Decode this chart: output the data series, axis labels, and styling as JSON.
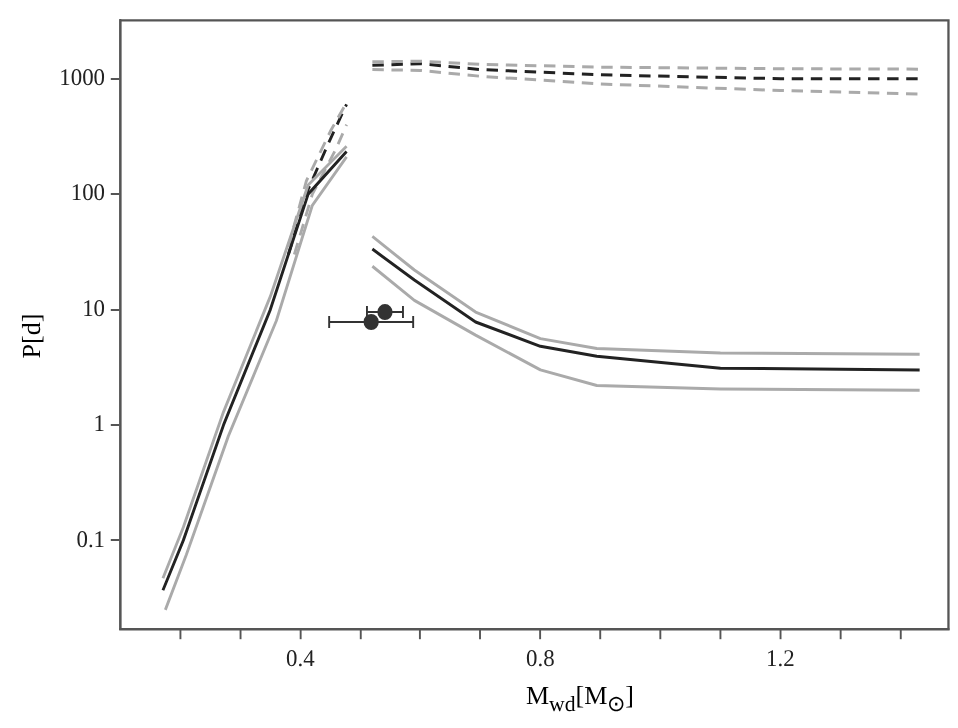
{
  "chart_data": {
    "type": "line",
    "xlabel": "M$_{wd}$[M$_{⊙}$]",
    "ylabel": "P[d]",
    "log": "y",
    "grid": false,
    "legend": false,
    "xlim": [
      0.1,
      1.48
    ],
    "ylim": [
      0.017,
      3200
    ],
    "xticks": [
      {
        "value": 0.2,
        "label": null
      },
      {
        "value": 0.3,
        "label": null
      },
      0.4,
      {
        "value": 0.5,
        "label": null
      },
      {
        "value": 0.6,
        "label": null
      },
      {
        "value": 0.7,
        "label": null
      },
      0.8,
      {
        "value": 0.9,
        "label": null
      },
      {
        "value": 1.0,
        "label": null
      },
      {
        "value": 1.1,
        "label": null
      },
      1.2,
      {
        "value": 1.3,
        "label": null
      },
      {
        "value": 1.4,
        "label": null
      }
    ],
    "yticks": [
      0.1,
      1,
      10,
      100,
      1000
    ],
    "series": [
      {
        "type": "line",
        "color": "#aaaaaa",
        "line_style": "solid",
        "x": [
          0.171,
          0.205,
          0.272,
          0.35,
          0.413,
          0.477,
          null,
          0.52,
          0.59,
          0.692,
          0.8,
          0.894,
          1.1,
          1.432
        ],
        "values": [
          0.047,
          0.13,
          1.3,
          13,
          120,
          260,
          null,
          43,
          22,
          9.5,
          5.6,
          4.6,
          4.2,
          4.1
        ]
      },
      {
        "type": "line",
        "color": "#aaaaaa",
        "line_style": "solid",
        "x": [
          0.175,
          0.21,
          0.28,
          0.36,
          0.42,
          0.477,
          null,
          0.52,
          0.59,
          0.692,
          0.8,
          0.894,
          1.1,
          1.432
        ],
        "values": [
          0.025,
          0.075,
          0.8,
          8,
          80,
          210,
          null,
          23.7,
          12,
          6,
          3,
          2.2,
          2.05,
          2.0
        ]
      },
      {
        "type": "line",
        "color": "#222222",
        "line_style": "solid",
        "x": [
          0.171,
          0.205,
          0.272,
          0.35,
          0.413,
          0.477,
          null,
          0.52,
          0.59,
          0.692,
          0.8,
          0.894,
          1.1,
          1.432
        ],
        "values": [
          0.037,
          0.1,
          1,
          10,
          100,
          234,
          null,
          33.4,
          18,
          7.8,
          4.8,
          3.94,
          3.1,
          3.0
        ]
      },
      {
        "type": "line",
        "color": "#aaaaaa",
        "line_style": "dashed",
        "x": [
          0.38,
          0.41,
          0.45,
          0.477,
          null,
          0.52,
          0.6,
          0.7,
          0.9,
          1.2,
          1.432
        ],
        "values": [
          35,
          130,
          350,
          620,
          null,
          1400,
          1420,
          1330,
          1260,
          1220,
          1210
        ]
      },
      {
        "type": "line",
        "color": "#aaaaaa",
        "line_style": "dashed",
        "x": [
          0.39,
          0.42,
          0.46,
          0.477,
          null,
          0.52,
          0.6,
          0.7,
          0.9,
          1.2,
          1.432
        ],
        "values": [
          30,
          100,
          250,
          400,
          null,
          1200,
          1180,
          1050,
          900,
          790,
          736
        ]
      },
      {
        "type": "line",
        "color": "#222222",
        "line_style": "dashed",
        "x": [
          0.38,
          0.413,
          0.45,
          0.477,
          null,
          0.52,
          0.6,
          0.7,
          0.9,
          1.2,
          1.432
        ],
        "values": [
          30,
          110,
          300,
          600,
          null,
          1306,
          1350,
          1200,
          1080,
          1000,
          1000
        ]
      },
      {
        "type": "scatter",
        "color": "#333333",
        "marker": "circle",
        "x": [
          0.541,
          0.518
        ],
        "values": [
          9.5,
          7.8
        ],
        "xerrors": [
          0.03,
          0.07
        ]
      }
    ]
  }
}
